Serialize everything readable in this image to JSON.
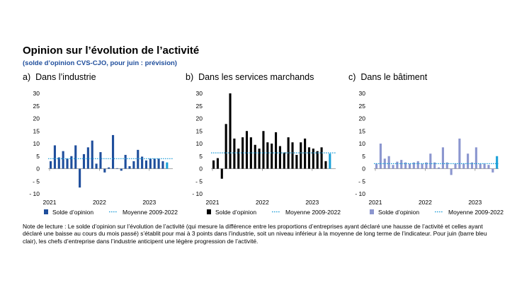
{
  "title": "Opinion sur l’évolution de l’activité",
  "subtitle": "(solde d’opinion CVS-CJO, pour juin : prévision)",
  "note": "Note de lecture : Le solde d’opinion sur l’évolution de l’activité (qui mesure la différence entre les proportions d’entreprises ayant déclaré une hausse de l’activité et celles ayant déclaré une baisse au cours du mois passé) s’établit pour mai à 3 points dans l’industrie, soit un niveau inférieur à la moyenne de long terme de l’indicateur. Pour juin (barre bleu clair), les chefs d’entreprise dans l’industrie anticipent une légère progression de l’activité.",
  "colors": {
    "dotted_line": "#1a9bd7",
    "forecast": "#1aa0d8"
  },
  "chart_data": [
    {
      "type": "bar",
      "panel": "a)",
      "title": "Dans l’industrie",
      "ylim": [
        -10,
        30
      ],
      "yticks": [
        "30",
        "25",
        "20",
        "15",
        "10",
        "5",
        "0",
        "- 5",
        "- 10"
      ],
      "xticks": [
        {
          "label": "2021",
          "index": 0
        },
        {
          "label": "2022",
          "index": 12
        },
        {
          "label": "2023",
          "index": 24
        }
      ],
      "values": [
        3,
        9.3,
        4.5,
        7,
        4,
        5,
        9.3,
        -7.5,
        5.8,
        8.5,
        11.2,
        2,
        6.6,
        -1.5,
        0.5,
        13.4,
        0.2,
        -0.8,
        5.5,
        1,
        3,
        7.5,
        4.8,
        3.3,
        4,
        4,
        4,
        3,
        2.5
      ],
      "forecast_value": 2.5,
      "mean": 4,
      "bar_color": "#1f4e9c",
      "legend": [
        "Solde d’opinion",
        "Moyenne 2009-2022"
      ]
    },
    {
      "type": "bar",
      "panel": "b)",
      "title": "Dans les services marchands",
      "ylim": [
        -10,
        30
      ],
      "yticks": [
        "30",
        "25",
        "20",
        "15",
        "10",
        "5",
        "0",
        "- 5",
        "- 10"
      ],
      "xticks": [
        {
          "label": "2021",
          "index": 0
        },
        {
          "label": "2022",
          "index": 12
        },
        {
          "label": "2023",
          "index": 24
        }
      ],
      "values": [
        3.3,
        4.2,
        -4,
        17.8,
        30,
        12,
        8,
        12.5,
        15,
        12.5,
        9.5,
        8,
        15,
        10.5,
        10,
        14.5,
        9,
        6.5,
        12.5,
        10.5,
        5.5,
        10.5,
        12,
        8.5,
        8,
        7,
        8.5,
        3,
        6
      ],
      "forecast_value": 6,
      "mean": 6.3,
      "bar_color": "#000000",
      "legend": [
        "Solde d’opinion",
        "Moyenne 2009-2022"
      ]
    },
    {
      "type": "bar",
      "panel": "c)",
      "title": "Dans le bâtiment",
      "ylim": [
        -10,
        30
      ],
      "yticks": [
        "30",
        "25",
        "20",
        "15",
        "10",
        "5",
        "0",
        "- 5",
        "- 10"
      ],
      "xticks": [
        {
          "label": "2021",
          "index": 0
        },
        {
          "label": "2022",
          "index": 12
        },
        {
          "label": "2023",
          "index": 24
        }
      ],
      "values": [
        2,
        10,
        4,
        5,
        1.5,
        2.8,
        3.5,
        2.5,
        2,
        2.5,
        3,
        2,
        2.5,
        6,
        2.5,
        0.5,
        8.5,
        2.5,
        -2.5,
        2,
        12,
        2,
        6,
        2.5,
        8.5,
        2,
        2,
        1.5,
        -1.5,
        5
      ],
      "forecast_value": 5,
      "mean": 2,
      "bar_color": "#8b96cf",
      "legend": [
        "Solde d’opinion",
        "Moyenne 2009-2022"
      ]
    }
  ]
}
